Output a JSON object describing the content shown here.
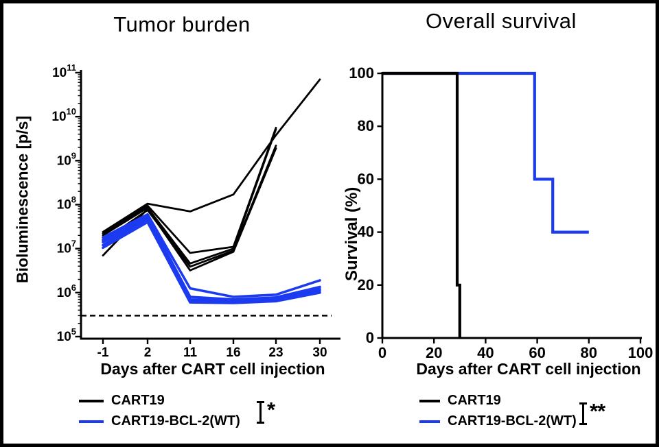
{
  "chart_data": [
    {
      "type": "line",
      "panel": "left",
      "title": "Tumor burden",
      "xlabel": "Days after CART cell injection",
      "ylabel": "Bioluminescence [p/s]",
      "x_categories": [
        -1,
        2,
        11,
        16,
        23,
        30
      ],
      "y_scale": "log10",
      "y_tick_exponents": [
        5,
        6,
        7,
        8,
        9,
        10,
        11
      ],
      "ylim": [
        100000.0,
        100000000000.0
      ],
      "grid": false,
      "legend_position": "bottom",
      "significance": "*",
      "detection_threshold": {
        "style": "dashed",
        "value": 300000.0
      },
      "series": [
        {
          "name": "CART19",
          "color": "#000000",
          "mice": [
            [
              24000000.0,
              105000000.0,
              70000000.0,
              170000000.0,
              3800000000.0,
              70000000000.0
            ],
            [
              22000000.0,
              95000000.0,
              8000000.0,
              11000000.0,
              5600000000.0,
              null
            ],
            [
              20000000.0,
              85000000.0,
              4600000.0,
              10000000.0,
              5200000000.0,
              null
            ],
            [
              15000000.0,
              75000000.0,
              3900000.0,
              9000000.0,
              2200000000.0,
              null
            ],
            [
              7000000.0,
              80000000.0,
              3200000.0,
              8500000.0,
              1900000000.0,
              null
            ]
          ]
        },
        {
          "name": "CART19-BCL-2(WT)",
          "color": "#1c3bf0",
          "mice": [
            [
              18000000.0,
              60000000.0,
              1250000.0,
              800000.0,
              900000.0,
              1900000.0
            ],
            [
              16000000.0,
              55000000.0,
              800000.0,
              700000.0,
              780000.0,
              1350000.0
            ],
            [
              14000000.0,
              50000000.0,
              700000.0,
              660000.0,
              720000.0,
              1200000.0
            ],
            [
              12000000.0,
              46000000.0,
              650000.0,
              620000.0,
              680000.0,
              1100000.0
            ],
            [
              10500000.0,
              40000000.0,
              600000.0,
              580000.0,
              640000.0,
              1000000.0
            ]
          ]
        }
      ]
    },
    {
      "type": "step",
      "panel": "right",
      "title": "Overall survival",
      "xlabel": "Days after CART cell injection",
      "ylabel": "Survival (%)",
      "xlim": [
        0,
        100
      ],
      "ylim": [
        0,
        100
      ],
      "xticks": [
        0,
        20,
        40,
        60,
        80,
        100
      ],
      "yticks": [
        0,
        20,
        40,
        60,
        80,
        100
      ],
      "grid": false,
      "legend_position": "bottom",
      "significance": "**",
      "series": [
        {
          "name": "CART19",
          "color": "#000000",
          "points": [
            [
              0,
              100
            ],
            [
              29,
              100
            ],
            [
              29,
              20
            ],
            [
              30,
              20
            ],
            [
              30,
              0
            ]
          ]
        },
        {
          "name": "CART19-BCL-2(WT)",
          "color": "#1c3bf0",
          "points": [
            [
              0,
              100
            ],
            [
              59,
              100
            ],
            [
              59,
              60
            ],
            [
              66,
              60
            ],
            [
              66,
              40
            ],
            [
              80,
              40
            ]
          ]
        }
      ]
    }
  ]
}
